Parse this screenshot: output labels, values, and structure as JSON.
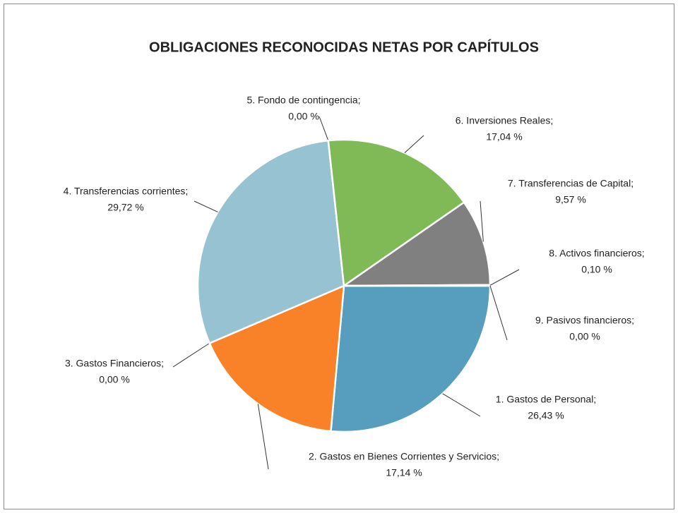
{
  "chart_data": {
    "type": "pie",
    "title": "OBLIGACIONES RECONOCIDAS NETAS POR CAPÍTULOS",
    "categories": [
      "1. Gastos de Personal;",
      "2. Gastos en Bienes Corrientes y Servicios;",
      "3. Gastos Financieros;",
      "4. Transferencias corrientes;",
      "5. Fondo de contingencia;",
      "6. Inversiones Reales;",
      "7. Transferencias de Capital;",
      "8. Activos financieros;",
      "9. Pasivos financieros;"
    ],
    "values": [
      26.43,
      17.14,
      0.0,
      29.72,
      0.0,
      17.04,
      9.57,
      0.1,
      0.0
    ],
    "value_labels": [
      "26,43 %",
      "17,14 %",
      "0,00 %",
      "29,72 %",
      "0,00 %",
      "17,04 %",
      "9,57 %",
      "0,10 %",
      "0,00 %"
    ],
    "colors": [
      "#579dbe",
      "#f98127",
      "#d9d9d9",
      "#97c2d2",
      "#c0143c",
      "#7fba57",
      "#808080",
      "#f2c40f",
      "#7b5c8e"
    ]
  }
}
